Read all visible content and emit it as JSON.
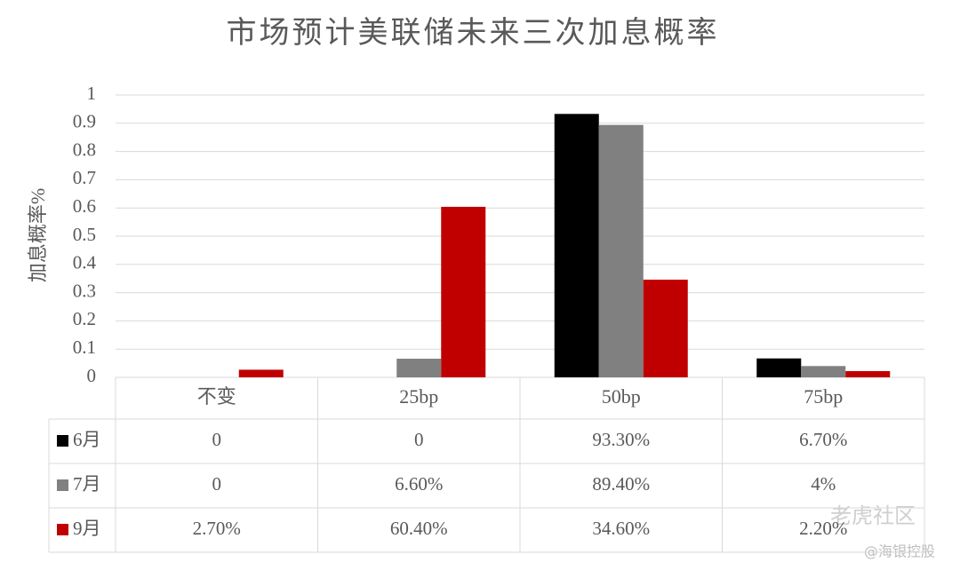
{
  "chart_data": {
    "type": "bar",
    "title": "市场预计美联储未来三次加息概率",
    "y_label": "加息概率%",
    "categories": [
      "不变",
      "25bp",
      "50bp",
      "75bp"
    ],
    "series": [
      {
        "name": "6月",
        "color": "#000000",
        "values": [
          0,
          0,
          0.933,
          0.067
        ],
        "value_labels": [
          "0",
          "0",
          "93.30%",
          "6.70%"
        ]
      },
      {
        "name": "7月",
        "color": "#808080",
        "values": [
          0,
          0.066,
          0.894,
          0.04
        ],
        "value_labels": [
          "0",
          "6.60%",
          "89.40%",
          "4%"
        ]
      },
      {
        "name": "9月",
        "color": "#c00000",
        "values": [
          0.027,
          0.604,
          0.346,
          0.022
        ],
        "value_labels": [
          "2.70%",
          "60.40%",
          "34.60%",
          "2.20%"
        ]
      }
    ],
    "ylim": [
      0,
      1
    ],
    "yticks": [
      0,
      0.1,
      0.2,
      0.3,
      0.4,
      0.5,
      0.6,
      0.7,
      0.8,
      0.9,
      1
    ],
    "grid": true,
    "watermarks": [
      "老虎社区",
      "@海银控股"
    ]
  }
}
